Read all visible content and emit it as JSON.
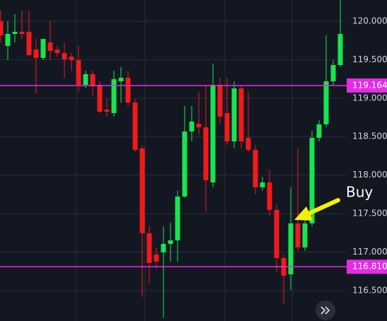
{
  "chart_data": {
    "type": "candlestick",
    "open": [
      120.0,
      119.678,
      119.834,
      119.862,
      119.862,
      119.632,
      119.522,
      119.724,
      119.632,
      119.586,
      119.54,
      119.494,
      119.173,
      119.311,
      119.173,
      118.852,
      118.806,
      119.219,
      119.265,
      118.943,
      118.347,
      117.245,
      116.969,
      116.997,
      117.107,
      117.153,
      117.722,
      118.567,
      118.668,
      118.622,
      117.906,
      119.173,
      118.806,
      118.438,
      119.127,
      118.484,
      118.328,
      117.842,
      117.906,
      117.548,
      116.923,
      116.712,
      117.373,
      117.061,
      117.373,
      118.484,
      118.659,
      119.219,
      119.43
    ],
    "close": [
      119.816,
      119.834,
      119.862,
      119.834,
      119.559,
      119.522,
      119.77,
      119.614,
      119.586,
      119.504,
      119.494,
      119.173,
      119.311,
      119.155,
      118.824,
      118.824,
      119.247,
      119.265,
      118.943,
      118.328,
      117.245,
      116.859,
      116.877,
      117.107,
      117.153,
      117.722,
      118.567,
      118.696,
      118.622,
      117.933,
      119.173,
      118.76,
      118.438,
      119.127,
      118.438,
      118.328,
      117.842,
      117.906,
      117.548,
      116.923,
      116.694,
      117.373,
      117.061,
      117.373,
      118.484,
      118.659,
      119.219,
      119.43,
      119.834
    ],
    "high": [
      120.137,
      120.0,
      120.091,
      120.137,
      120.137,
      119.77,
      119.77,
      120.0,
      119.678,
      119.724,
      119.586,
      119.678,
      119.357,
      119.357,
      119.219,
      118.989,
      119.357,
      119.403,
      119.357,
      118.989,
      118.392,
      117.336,
      117.061,
      117.336,
      117.382,
      117.796,
      118.898,
      118.898,
      119.081,
      119.173,
      119.449,
      119.265,
      119.265,
      119.219,
      119.173,
      119.081,
      118.392,
      117.979,
      118.071,
      117.612,
      116.969,
      117.842,
      118.347,
      117.52,
      118.576,
      118.714,
      119.816,
      119.494,
      120.275
    ],
    "low": [
      119.724,
      119.494,
      119.724,
      119.77,
      119.54,
      119.063,
      119.494,
      119.494,
      119.54,
      119.265,
      119.357,
      119.081,
      119.127,
      119.035,
      118.806,
      118.76,
      118.76,
      118.943,
      118.898,
      118.301,
      116.418,
      116.602,
      116.785,
      116.143,
      116.877,
      116.877,
      117.704,
      118.438,
      118.53,
      117.52,
      117.842,
      118.668,
      118.392,
      118.347,
      118.347,
      118.301,
      117.75,
      117.796,
      117.474,
      116.74,
      116.326,
      116.51,
      117.015,
      117.015,
      117.336,
      118.438,
      118.622,
      119.173,
      119.403
    ],
    "up_color": "#19e34f",
    "down_color": "#f21a1a",
    "ylim": [
      116.105,
      120.275
    ],
    "yticks": [
      {
        "value": 120,
        "label": "120.000"
      },
      {
        "value": 119.5,
        "label": "119.500"
      },
      {
        "value": 119,
        "label": "119.000"
      },
      {
        "value": 118.5,
        "label": "118.500"
      },
      {
        "value": 118,
        "label": "118.000"
      },
      {
        "value": 117.5,
        "label": "117.500"
      },
      {
        "value": 117,
        "label": "117.000"
      },
      {
        "value": 116.5,
        "label": "116.500"
      }
    ],
    "grid": true,
    "hlines": [
      {
        "value": 119.164,
        "label": "119.164",
        "color": "#e52ce5"
      },
      {
        "value": 116.81,
        "label": "116.810",
        "color": "#e52ce5"
      }
    ],
    "annotation": "Buy"
  }
}
